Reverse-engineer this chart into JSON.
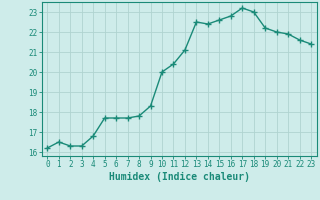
{
  "x": [
    0,
    1,
    2,
    3,
    4,
    5,
    6,
    7,
    8,
    9,
    10,
    11,
    12,
    13,
    14,
    15,
    16,
    17,
    18,
    19,
    20,
    21,
    22,
    23
  ],
  "y": [
    16.2,
    16.5,
    16.3,
    16.3,
    16.8,
    17.7,
    17.7,
    17.7,
    17.8,
    18.3,
    20.0,
    20.4,
    21.1,
    22.5,
    22.4,
    22.6,
    22.8,
    23.2,
    23.0,
    22.2,
    22.0,
    21.9,
    21.6,
    21.4
  ],
  "line_color": "#1a8a78",
  "marker": "+",
  "marker_size": 4,
  "marker_lw": 1.0,
  "bg_color": "#ceecea",
  "grid_color": "#b0d4d0",
  "xlabel": "Humidex (Indice chaleur)",
  "xlim": [
    -0.5,
    23.5
  ],
  "ylim": [
    15.8,
    23.5
  ],
  "yticks": [
    16,
    17,
    18,
    19,
    20,
    21,
    22,
    23
  ],
  "xticks": [
    0,
    1,
    2,
    3,
    4,
    5,
    6,
    7,
    8,
    9,
    10,
    11,
    12,
    13,
    14,
    15,
    16,
    17,
    18,
    19,
    20,
    21,
    22,
    23
  ],
  "tick_fontsize": 5.5,
  "xlabel_fontsize": 7.0,
  "tick_color": "#1a8a78",
  "axis_color": "#1a8a78",
  "line_width": 1.0
}
